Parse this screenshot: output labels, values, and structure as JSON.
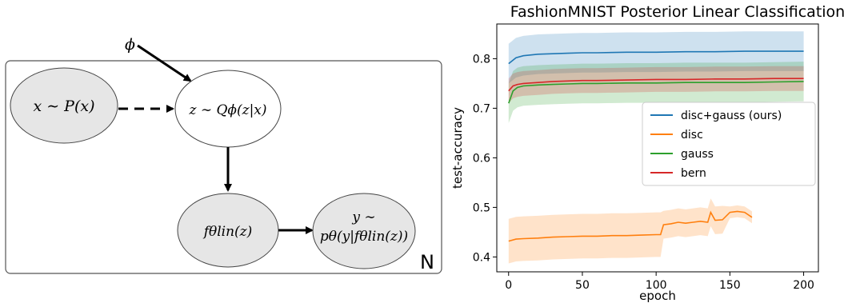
{
  "diagram": {
    "phi_label": "ϕ",
    "plate_label": "N",
    "nodes": {
      "x": "x ∼ P(x)",
      "z": "z ∼ Qϕ(z|x)",
      "f": "fθlin(z)",
      "y_line1": "y ∼",
      "y_line2": "pθ(y|fθlin(z))"
    }
  },
  "chart_data": {
    "type": "line",
    "title": "FashionMNIST Posterior Linear Classification",
    "xlabel": "epoch",
    "ylabel": "test-accuracy",
    "xlim": [
      -8,
      210
    ],
    "ylim": [
      0.37,
      0.87
    ],
    "xticks": [
      "0",
      "50",
      "100",
      "150",
      "200"
    ],
    "yticks": [
      "0.4",
      "0.5",
      "0.6",
      "0.7",
      "0.8"
    ],
    "legend_position": "center-right",
    "series": [
      {
        "name": "disc+gauss (ours)",
        "color": "#1f77b4",
        "x": [
          0,
          5,
          10,
          20,
          30,
          40,
          50,
          60,
          80,
          100,
          120,
          140,
          160,
          180,
          200
        ],
        "y": [
          0.79,
          0.802,
          0.806,
          0.809,
          0.81,
          0.811,
          0.812,
          0.812,
          0.813,
          0.813,
          0.814,
          0.814,
          0.815,
          0.815,
          0.815
        ],
        "band": [
          0.04,
          0.04,
          0.04,
          0.04,
          0.04,
          0.04,
          0.04,
          0.04,
          0.04,
          0.04,
          0.04,
          0.04,
          0.04,
          0.04,
          0.04
        ]
      },
      {
        "name": "disc",
        "color": "#ff7f0e",
        "x": [
          0,
          5,
          10,
          20,
          30,
          40,
          50,
          60,
          70,
          80,
          90,
          100,
          103,
          105,
          110,
          115,
          120,
          125,
          130,
          135,
          137,
          140,
          145,
          150,
          155,
          160,
          165
        ],
        "y": [
          0.432,
          0.436,
          0.437,
          0.438,
          0.44,
          0.441,
          0.442,
          0.442,
          0.443,
          0.443,
          0.444,
          0.445,
          0.445,
          0.465,
          0.467,
          0.47,
          0.468,
          0.47,
          0.472,
          0.47,
          0.49,
          0.474,
          0.475,
          0.49,
          0.492,
          0.49,
          0.48
        ],
        "band": [
          0.045,
          0.045,
          0.045,
          0.045,
          0.045,
          0.045,
          0.045,
          0.045,
          0.045,
          0.045,
          0.045,
          0.045,
          0.045,
          0.028,
          0.028,
          0.028,
          0.028,
          0.028,
          0.028,
          0.028,
          0.028,
          0.028,
          0.028,
          0.012,
          0.012,
          0.012,
          0.012
        ]
      },
      {
        "name": "gauss",
        "color": "#2ca02c",
        "x": [
          0,
          3,
          6,
          10,
          20,
          30,
          40,
          50,
          60,
          80,
          100,
          120,
          140,
          160,
          180,
          200
        ],
        "y": [
          0.71,
          0.735,
          0.742,
          0.745,
          0.747,
          0.748,
          0.749,
          0.75,
          0.75,
          0.751,
          0.751,
          0.752,
          0.752,
          0.752,
          0.753,
          0.754
        ],
        "band": [
          0.04,
          0.04,
          0.04,
          0.04,
          0.04,
          0.04,
          0.04,
          0.04,
          0.04,
          0.04,
          0.04,
          0.04,
          0.04,
          0.04,
          0.04,
          0.04
        ]
      },
      {
        "name": "bern",
        "color": "#d62728",
        "x": [
          0,
          3,
          6,
          10,
          20,
          30,
          40,
          50,
          60,
          80,
          100,
          120,
          140,
          160,
          180,
          200
        ],
        "y": [
          0.735,
          0.745,
          0.748,
          0.75,
          0.752,
          0.754,
          0.755,
          0.756,
          0.756,
          0.757,
          0.758,
          0.758,
          0.759,
          0.759,
          0.76,
          0.76
        ],
        "band": [
          0.025,
          0.025,
          0.025,
          0.025,
          0.025,
          0.025,
          0.025,
          0.025,
          0.025,
          0.025,
          0.025,
          0.025,
          0.025,
          0.025,
          0.025,
          0.025
        ]
      }
    ]
  }
}
